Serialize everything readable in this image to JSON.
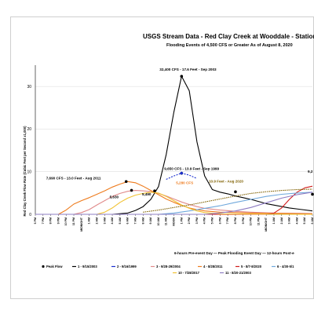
{
  "chart_data": {
    "type": "line",
    "title": "USGS Stream Data - Red Clay Creek at Wooddale - Station",
    "subtitle": "Flooding Events of 4,500 CFS or Greater As of August 8, 2020",
    "ylabel": "Red Clay Creek Flow Rate (Cubic Feet per Second x1,000)",
    "xlabel": "6-hours Pre-event Day — Peak Flooding Event Day — 12-hours Post-e",
    "ylim": [
      0,
      35
    ],
    "y_ticks": [
      "0",
      "10",
      "20",
      "30"
    ],
    "x_ticks": [
      "6 PM",
      "7 PM",
      "8 PM",
      "9 PM",
      "10 PM",
      "11 PM",
      "MIDNIGHT",
      "1 AM",
      "2 AM",
      "3 AM",
      "4 AM",
      "5 AM",
      "6 AM",
      "7 AM",
      "8 AM",
      "9 AM",
      "10 AM",
      "11 AM",
      "NOON",
      "1 PM",
      "2 PM",
      "3 PM",
      "4 PM",
      "5 PM",
      "6 PM",
      "7 PM",
      "8 PM",
      "9 PM",
      "10 PM",
      "11 PM",
      "MIDNIGHT",
      "1 AM",
      "2 AM",
      "3 AM",
      "4 AM",
      "5 AM",
      "6 AM"
    ],
    "grid": true,
    "legend_position": "bottom",
    "legend": [
      {
        "label": "Peak Flow",
        "color": "#000000",
        "style": "marker"
      },
      {
        "label": "1 - 9/15/2003",
        "color": "#000000"
      },
      {
        "label": "2 - 9/16/1999",
        "color": "#1a2fd0"
      },
      {
        "label": "3 - 9/28-29/2004",
        "color": "#e08a8a"
      },
      {
        "label": "4 - 8/28/2011",
        "color": "#ee7b1d"
      },
      {
        "label": "5 - 8/7-8/2020",
        "color": "#d01c1c"
      },
      {
        "label": "6 - 4/30-5/1",
        "color": "#6fa8dc"
      },
      {
        "label": "10 - 7/28/2017",
        "color": "#f1c232"
      },
      {
        "label": "11 - 8/20-21/2003",
        "color": "#8e7cc3"
      }
    ],
    "series": [
      {
        "name": "1 - 9/15/2003",
        "color": "#000000",
        "dash": "",
        "x": [
          0,
          10,
          12,
          13,
          14,
          15,
          16,
          17,
          18,
          19,
          20,
          21,
          22,
          23,
          24,
          25,
          26,
          27,
          28,
          30,
          33,
          36
        ],
        "y": [
          0,
          0,
          0.3,
          0.9,
          1.8,
          3.5,
          6.5,
          14,
          24,
          32.4,
          29,
          17,
          9,
          5.8,
          5.2,
          4.8,
          4.3,
          3.9,
          3.5,
          2.5,
          1.5,
          0.8
        ]
      },
      {
        "name": "2 - 9/16/1999",
        "color": "#1a2fd0",
        "dash": "2,1.5",
        "x": [
          17,
          18,
          19,
          20,
          21
        ],
        "y": [
          8.2,
          9,
          9.65,
          9.2,
          8.4
        ]
      },
      {
        "name": "3 - 9/28-29/2004",
        "color": "#e08a8a",
        "dash": "",
        "x": [
          0,
          5,
          6,
          7,
          8,
          9,
          10,
          11,
          12,
          13,
          14,
          15,
          16,
          17,
          18,
          19,
          20,
          21,
          22,
          24,
          26,
          28,
          31,
          36
        ],
        "y": [
          0,
          0,
          0.4,
          1.1,
          2.2,
          3.2,
          4.2,
          4.9,
          5.4,
          5.6,
          5.5,
          5.3,
          4.9,
          4.3,
          3.6,
          2.9,
          2.3,
          1.8,
          1.4,
          1,
          0.7,
          0.5,
          0.3,
          0.2
        ]
      },
      {
        "name": "4 - 8/28/2011",
        "color": "#ee7b1d",
        "dash": "",
        "x": [
          0,
          3,
          4,
          5,
          6,
          7,
          8,
          9,
          10,
          11,
          12,
          13,
          14,
          15,
          16,
          17,
          18,
          19,
          20,
          21,
          22,
          24,
          26,
          28,
          32,
          36
        ],
        "y": [
          0,
          0,
          1,
          2.4,
          3.2,
          3.9,
          4.7,
          5.5,
          6.4,
          7.1,
          7.69,
          7.4,
          6.6,
          5.6,
          4.6,
          3.6,
          2.8,
          2.1,
          1.5,
          1.1,
          0.8,
          0.5,
          0.4,
          0.3,
          0.2,
          0.1
        ]
      },
      {
        "name": "5 - 8/7-8/2020",
        "color": "#d01c1c",
        "dash": "",
        "x": [
          0,
          30,
          31,
          32,
          33,
          34,
          35,
          36
        ],
        "y": [
          0,
          0,
          0.3,
          1.5,
          3.5,
          5.2,
          6.2,
          6.6
        ]
      },
      {
        "name": "6 - 4/30-5/1",
        "color": "#6fa8dc",
        "dash": "",
        "x": [
          0,
          16,
          18,
          20,
          22,
          24,
          26,
          28,
          30,
          32,
          34,
          36
        ],
        "y": [
          0,
          0,
          0.3,
          0.8,
          1.4,
          2,
          2.8,
          3.5,
          4.2,
          4.7,
          5,
          5.2
        ]
      },
      {
        "name": "10 - 7/28/2017",
        "color": "#f1c232",
        "dash": "",
        "x": [
          0,
          8,
          9,
          10,
          11,
          12,
          13,
          14,
          15,
          16,
          17,
          18,
          19,
          20,
          21,
          22,
          24,
          36
        ],
        "y": [
          0,
          0,
          0.5,
          1.5,
          2.8,
          3.8,
          4.5,
          4.9,
          5.2,
          5,
          4.2,
          3.2,
          2.2,
          1.4,
          0.8,
          0.4,
          0.1,
          0
        ]
      },
      {
        "name": "11 - 8/20-21/2003",
        "color": "#8e7cc3",
        "dash": "",
        "x": [
          0,
          22,
          24,
          26,
          28,
          30,
          32,
          34,
          36
        ],
        "y": [
          0,
          0,
          0.3,
          0.8,
          1.6,
          2.7,
          3.8,
          4.6,
          5.2
        ]
      },
      {
        "name": "Peak 1999 trend",
        "color": "#7f6000",
        "dash": "1.5,1",
        "x": [
          14,
          16,
          18,
          20,
          22,
          24,
          26,
          28,
          30,
          32,
          34,
          36
        ],
        "y": [
          0.5,
          1,
          1.6,
          2.2,
          2.9,
          3.6,
          4.3,
          4.9,
          5.3,
          5.6,
          5.8,
          5.9
        ]
      }
    ],
    "peaks": [
      {
        "x": 19,
        "y": 32.4
      },
      {
        "x": 19,
        "y": 9.65
      },
      {
        "x": 11.8,
        "y": 7.69
      },
      {
        "x": 12.5,
        "y": 5.63
      },
      {
        "x": 15.5,
        "y": 5.49
      },
      {
        "x": 26,
        "y": 5.28
      },
      {
        "x": 36,
        "y": 4.7
      }
    ],
    "annotations": [
      {
        "text": "32,400 CFS - 17.6 Feet - Sep 2003",
        "x": 19,
        "y": 32.4,
        "color": "#000000"
      },
      {
        "text": "9,650 CFS - 13.9 Feet - Sep 1999",
        "x": 19,
        "y": 9.65,
        "color": "#000000"
      },
      {
        "text": "7,690 CFS - 13.0 Feet - Aug 2011",
        "x": 11.8,
        "y": 7.69,
        "color": "#000000"
      },
      {
        "text": "5,280 CFS",
        "x": 19.5,
        "y": 6.2,
        "color": "#ee7b1d"
      },
      {
        "text": "10.9 Feet - Aug 2020",
        "x": 26,
        "y": 6.2,
        "color": "#7f6000"
      },
      {
        "text": "5,630",
        "x": 12.5,
        "y": 5.63,
        "color": "#000000"
      },
      {
        "text": "5,490",
        "x": 15.5,
        "y": 5.49,
        "color": "#000000"
      },
      {
        "text": "9,2",
        "x": 36,
        "y": 9.2,
        "color": "#000000"
      }
    ]
  }
}
